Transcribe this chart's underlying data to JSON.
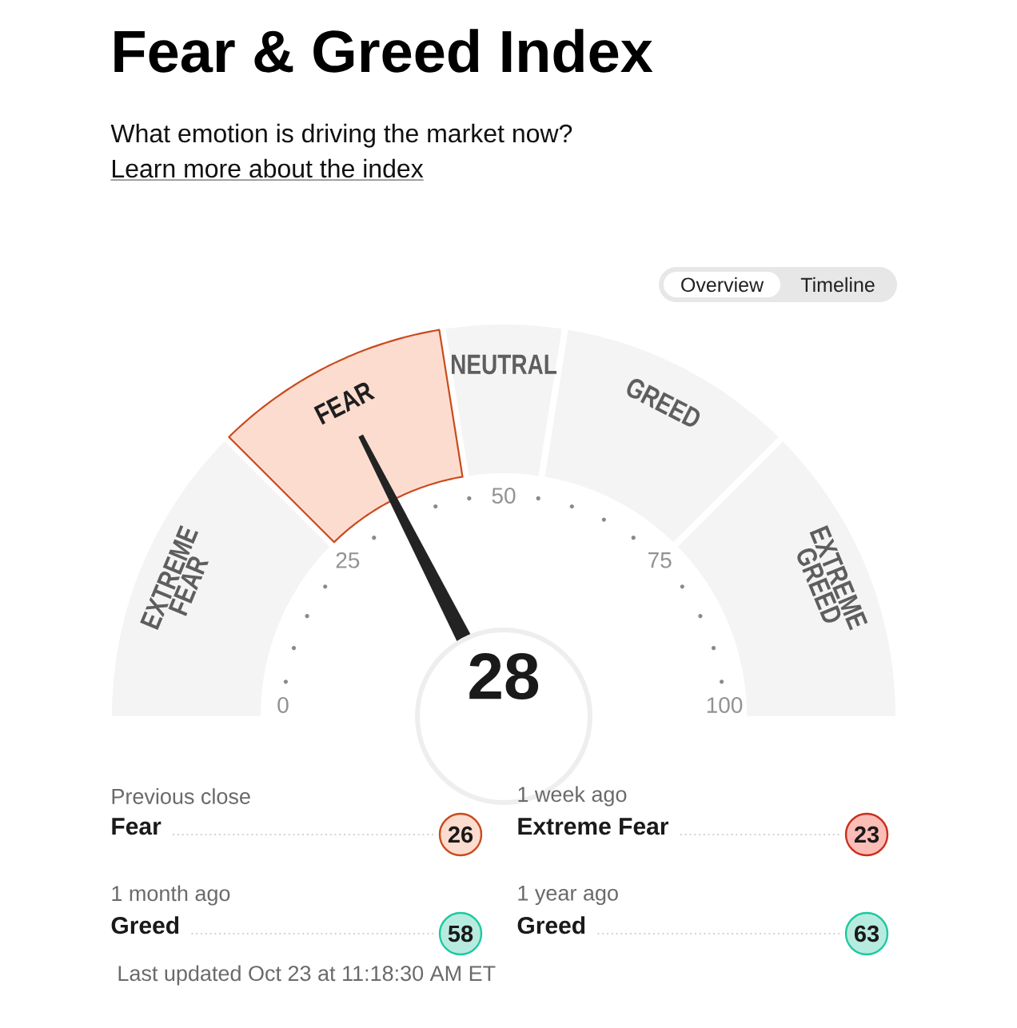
{
  "chart_data": [
    {
      "type": "donut",
      "title": "Fear & Greed Index",
      "subtitle": "What emotion is driving the market now?",
      "annotations": [
        "Learn more about the index",
        "Overview",
        "Timeline",
        "0",
        "25",
        "50",
        "75",
        "100",
        "28"
      ],
      "categories": [
        "EXTREME FEAR",
        "FEAR",
        "NEUTRAL",
        "GREED",
        "EXTREME GREED"
      ],
      "values": [
        25,
        20,
        10,
        20,
        25
      ],
      "colors": [
        "#f4f4f4",
        "#fddcd0",
        "#f4f4f4",
        "#f4f4f4",
        "#f4f4f4"
      ],
      "needle": "FEAR"
    },
    {
      "type": "other",
      "colors": [
        "#fddcd0",
        "#fbbdb6",
        "#b8ebdf",
        "#b8ebdf"
      ],
      "annotations": [
        "Previous close",
        "Fear",
        "26",
        "1 week ago",
        "Extreme Fear",
        "23",
        "1 month ago",
        "Greed",
        "58",
        "1 year ago",
        "Greed",
        "63",
        "Last updated Oct 23 at 11:18:30 AM ET"
      ]
    }
  ]
}
